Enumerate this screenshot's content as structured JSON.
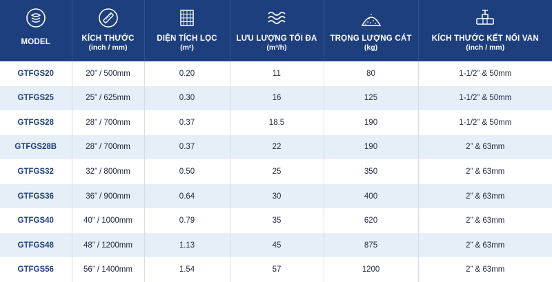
{
  "headers": {
    "model": {
      "label": "MODEL",
      "unit": "",
      "icon": "sand-layers-icon"
    },
    "size": {
      "label": "KÍCH THƯỚC",
      "unit": "(inch / mm)",
      "icon": "ruler-icon"
    },
    "area": {
      "label": "DIỆN TÍCH LỌC",
      "unit": "(m²)",
      "icon": "grid-icon"
    },
    "flow": {
      "label": "LƯU LƯỢNG TỐI ĐA",
      "unit": "(m³/h)",
      "icon": "waves-icon"
    },
    "sand": {
      "label": "TRỌNG LƯỢNG CÁT",
      "unit": "(kg)",
      "icon": "sand-pile-icon"
    },
    "valve": {
      "label": "KÍCH THƯỚC KẾT NỐI VAN",
      "unit": "(inch / mm)",
      "icon": "valve-icon"
    }
  },
  "rows": [
    {
      "model": "GTFGS20",
      "size": "20” / 500mm",
      "area": "0.20",
      "flow": "11",
      "sand": "80",
      "valve": "1-1/2” & 50mm"
    },
    {
      "model": "GTFGS25",
      "size": "25” / 625mm",
      "area": "0.30",
      "flow": "16",
      "sand": "125",
      "valve": "1-1/2” & 50mm"
    },
    {
      "model": "GTFGS28",
      "size": "28” / 700mm",
      "area": "0.37",
      "flow": "18.5",
      "sand": "190",
      "valve": "1-1/2” & 50mm"
    },
    {
      "model": "GTFGS28B",
      "size": "28” / 700mm",
      "area": "0.37",
      "flow": "22",
      "sand": "190",
      "valve": "2” & 63mm"
    },
    {
      "model": "GTFGS32",
      "size": "32” / 800mm",
      "area": "0.50",
      "flow": "25",
      "sand": "350",
      "valve": "2” & 63mm"
    },
    {
      "model": "GTFGS36",
      "size": "36” / 900mm",
      "area": "0.64",
      "flow": "30",
      "sand": "400",
      "valve": "2” & 63mm"
    },
    {
      "model": "GTFGS40",
      "size": "40” / 1000mm",
      "area": "0.79",
      "flow": "35",
      "sand": "620",
      "valve": "2” & 63mm"
    },
    {
      "model": "GTFGS48",
      "size": "48” / 1200mm",
      "area": "1.13",
      "flow": "45",
      "sand": "875",
      "valve": "2” & 63mm"
    },
    {
      "model": "GTFGS56",
      "size": "56” / 1400mm",
      "area": "1.54",
      "flow": "57",
      "sand": "1200",
      "valve": "2” & 63mm"
    }
  ],
  "colors": {
    "header_bg": "#1d3f7e",
    "header_text": "#ffffff",
    "row_alt_bg": "#e6eef8",
    "model_text": "#1d3f7e"
  }
}
